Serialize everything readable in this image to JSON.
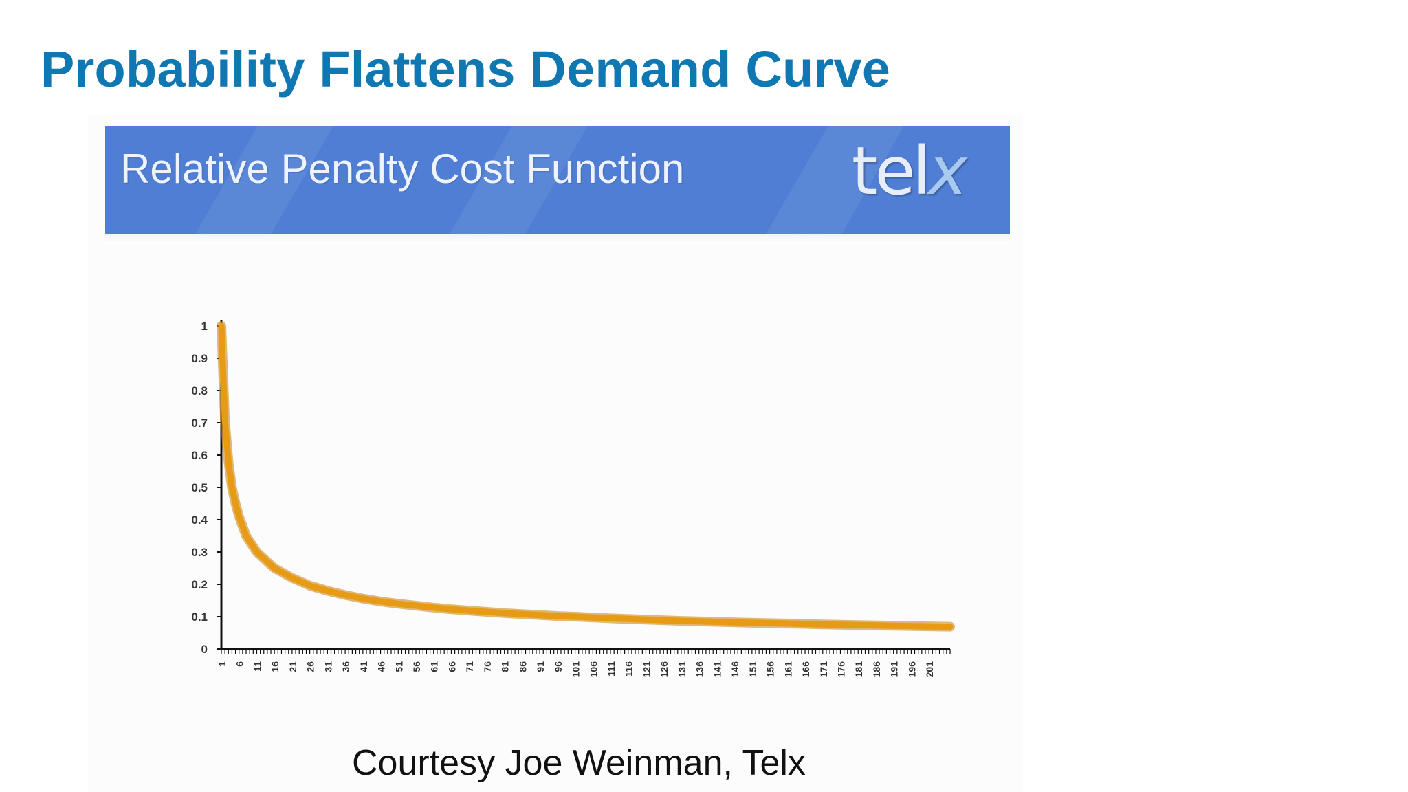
{
  "slide": {
    "title": "Probability Flattens Demand Curve",
    "credit": "Courtesy Joe Weinman, Telx"
  },
  "banner": {
    "title": "Relative Penalty Cost Function",
    "logo_text": "tel",
    "logo_accent": "x",
    "background_color": "#4f7ed4"
  },
  "colors": {
    "title": "#0f77b2",
    "curve": "#e79a14",
    "axis": "#111111"
  },
  "chart_data": {
    "type": "line",
    "title": "",
    "xlabel": "",
    "ylabel": "",
    "x_range": [
      1,
      207
    ],
    "ylim": [
      0,
      1
    ],
    "y_ticks": [
      0,
      0.1,
      0.2,
      0.3,
      0.4,
      0.5,
      0.6,
      0.7,
      0.8,
      0.9,
      1
    ],
    "y_tick_labels": [
      "0",
      "0.1",
      "0.2",
      "0.3",
      "0.4",
      "0.5",
      "0.6",
      "0.7",
      "0.8",
      "0.9",
      "1"
    ],
    "x_tick_labels": [
      "1",
      "6",
      "11",
      "16",
      "21",
      "26",
      "31",
      "36",
      "41",
      "46",
      "51",
      "56",
      "61",
      "66",
      "71",
      "76",
      "81",
      "86",
      "91",
      "96",
      "101",
      "106",
      "111",
      "116",
      "121",
      "126",
      "131",
      "136",
      "141",
      "146",
      "151",
      "156",
      "161",
      "166",
      "171",
      "176",
      "181",
      "186",
      "191",
      "196",
      "201"
    ],
    "grid": false,
    "series": [
      {
        "x": [
          1,
          2,
          3,
          4,
          5,
          6,
          8,
          11,
          16,
          21,
          26,
          31,
          36,
          41,
          46,
          51,
          56,
          61,
          66,
          71,
          76,
          81,
          86,
          91,
          96,
          101,
          111,
          121,
          131,
          141,
          151,
          161,
          171,
          181,
          191,
          201,
          207
        ],
        "y": [
          1.0,
          0.71,
          0.58,
          0.5,
          0.45,
          0.41,
          0.35,
          0.3,
          0.25,
          0.22,
          0.196,
          0.18,
          0.167,
          0.156,
          0.147,
          0.14,
          0.134,
          0.128,
          0.123,
          0.119,
          0.115,
          0.111,
          0.108,
          0.105,
          0.102,
          0.1,
          0.095,
          0.091,
          0.087,
          0.084,
          0.081,
          0.079,
          0.076,
          0.074,
          0.072,
          0.07,
          0.069
        ]
      }
    ]
  }
}
